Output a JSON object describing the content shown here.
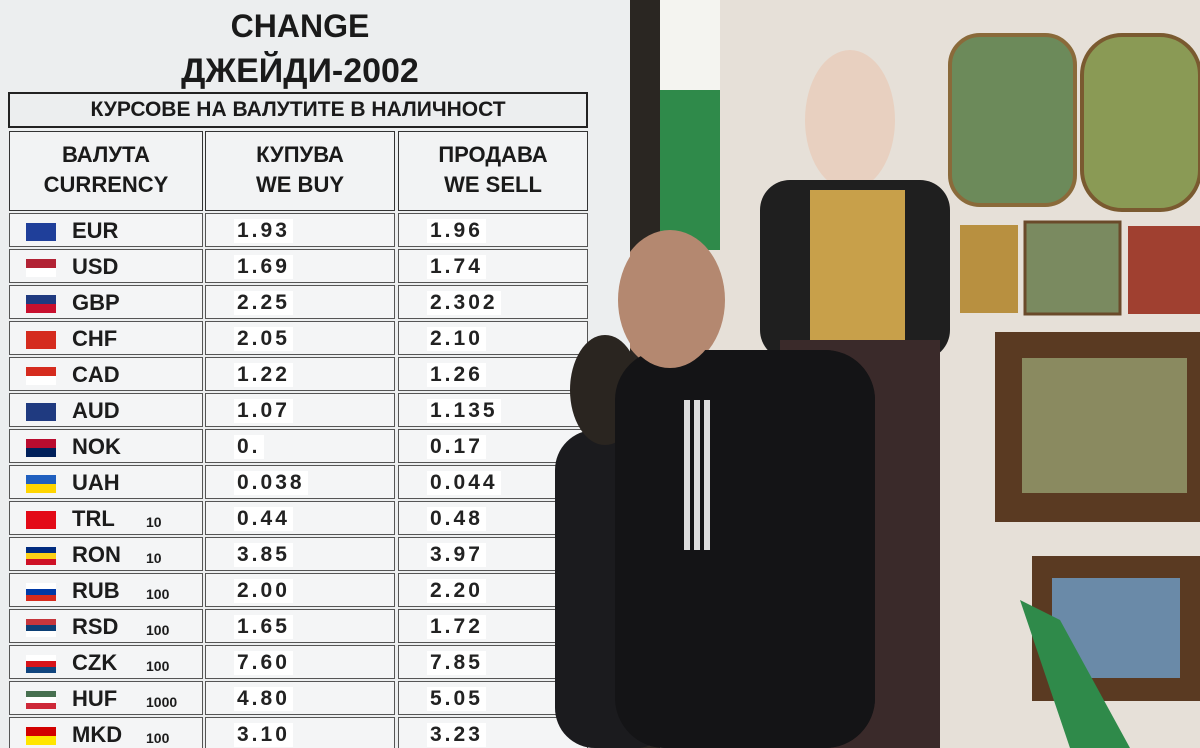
{
  "header": {
    "title": "CHANGE",
    "name": "ДЖЕЙДИ-2002",
    "subtitle": "КУРСОВЕ НА ВАЛУТИТЕ В НАЛИЧНОСТ"
  },
  "table": {
    "columns": [
      [
        "ВАЛУТА",
        "CURRENCY"
      ],
      [
        "КУПУВА",
        "WE BUY"
      ],
      [
        "ПРОДАВА",
        "WE SELL"
      ]
    ],
    "rows": [
      {
        "code": "EUR",
        "buy": "1.93",
        "sell": "1.96"
      },
      {
        "code": "USD",
        "buy": "1.69",
        "sell": "1.74"
      },
      {
        "code": "GBP",
        "buy": "2.25",
        "sell": "2.302"
      },
      {
        "code": "CHF",
        "buy": "2.05",
        "sell": "2.10"
      },
      {
        "code": "CAD",
        "buy": "1.22",
        "sell": "1.26"
      },
      {
        "code": "AUD",
        "buy": "1.07",
        "sell": "1.135"
      },
      {
        "code": "NOK",
        "buy": "0.",
        "sell": "0.17"
      },
      {
        "code": "UAH",
        "buy": "0.038",
        "sell": "0.044"
      },
      {
        "code": "TRL",
        "unit": "10",
        "buy": "0.44",
        "sell": "0.48"
      },
      {
        "code": "RON",
        "unit": "10",
        "buy": "3.85",
        "sell": "3.97"
      },
      {
        "code": "RUB",
        "unit": "100",
        "buy": "2.00",
        "sell": "2.20"
      },
      {
        "code": "RSD",
        "unit": "100",
        "buy": "1.65",
        "sell": "1.72"
      },
      {
        "code": "CZK",
        "unit": "100",
        "buy": "7.60",
        "sell": "7.85"
      },
      {
        "code": "HUF",
        "unit": "1000",
        "buy": "4.80",
        "sell": "5.05"
      },
      {
        "code": "MKD",
        "unit": "100",
        "buy": "3.10",
        "sell": "3.23"
      }
    ]
  }
}
